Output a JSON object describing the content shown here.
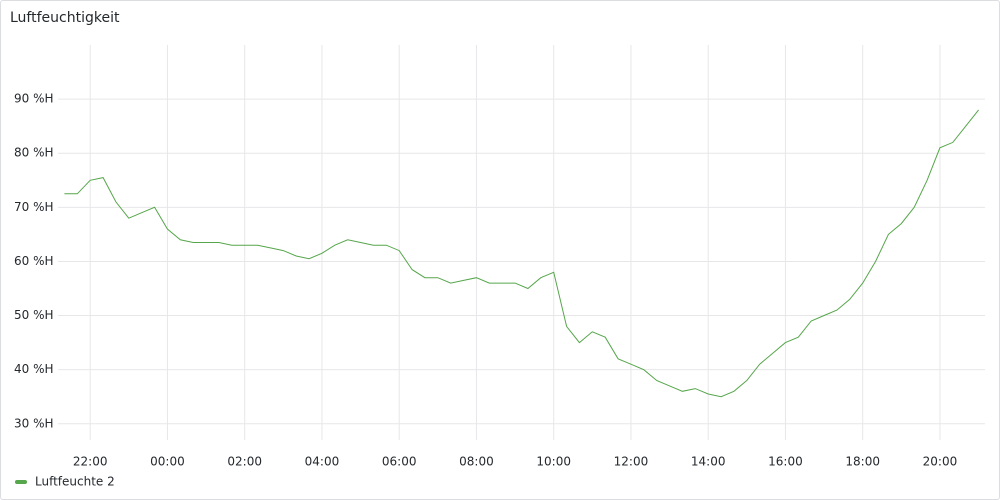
{
  "chart_data": {
    "type": "line",
    "title": "Luftfeuchtigkeit",
    "categories": [
      "21:20",
      "21:40",
      "22:00",
      "22:20",
      "22:40",
      "23:00",
      "23:20",
      "23:40",
      "00:00",
      "00:20",
      "00:40",
      "01:00",
      "01:20",
      "01:40",
      "02:00",
      "02:20",
      "02:40",
      "03:00",
      "03:20",
      "03:40",
      "04:00",
      "04:20",
      "04:40",
      "05:00",
      "05:20",
      "05:40",
      "06:00",
      "06:20",
      "06:40",
      "07:00",
      "07:20",
      "07:40",
      "08:00",
      "08:20",
      "08:40",
      "09:00",
      "09:20",
      "09:40",
      "10:00",
      "10:20",
      "10:40",
      "11:00",
      "11:20",
      "11:40",
      "12:00",
      "12:20",
      "12:40",
      "13:00",
      "13:20",
      "13:40",
      "14:00",
      "14:20",
      "14:40",
      "15:00",
      "15:20",
      "15:40",
      "16:00",
      "16:20",
      "16:40",
      "17:00",
      "17:20",
      "17:40",
      "18:00",
      "18:20",
      "18:40",
      "19:00",
      "19:20",
      "19:40",
      "20:00",
      "20:20",
      "20:40",
      "21:00"
    ],
    "series": [
      {
        "name": "Luftfeuchte 2",
        "color": "#56a64b",
        "values": [
          72.5,
          72.5,
          75,
          75.5,
          71,
          68,
          69,
          70,
          66,
          64,
          63.5,
          63.5,
          63.5,
          63,
          63,
          63,
          62.5,
          62,
          61,
          60.5,
          61.5,
          63,
          64,
          63.5,
          63,
          63,
          62,
          58.5,
          57,
          57,
          56,
          56.5,
          57,
          56,
          56,
          56,
          55,
          57,
          58,
          48,
          45,
          47,
          46,
          42,
          41,
          40,
          38,
          37,
          36,
          36.5,
          35.5,
          35,
          36,
          38,
          41,
          43,
          45,
          46,
          49,
          50,
          51,
          53,
          56,
          60,
          65,
          67,
          70,
          75,
          81,
          82,
          85,
          88
        ]
      }
    ],
    "xticks": [
      "22:00",
      "00:00",
      "02:00",
      "04:00",
      "06:00",
      "08:00",
      "10:00",
      "12:00",
      "14:00",
      "16:00",
      "18:00",
      "20:00"
    ],
    "ylim": [
      27,
      100
    ],
    "yticks": [
      {
        "value": 30,
        "label": "30 %H"
      },
      {
        "value": 40,
        "label": "40 %H"
      },
      {
        "value": 50,
        "label": "50 %H"
      },
      {
        "value": 60,
        "label": "60 %H"
      },
      {
        "value": 70,
        "label": "70 %H"
      },
      {
        "value": 80,
        "label": "80 %H"
      },
      {
        "value": 90,
        "label": "90 %H"
      }
    ],
    "grid": true
  }
}
